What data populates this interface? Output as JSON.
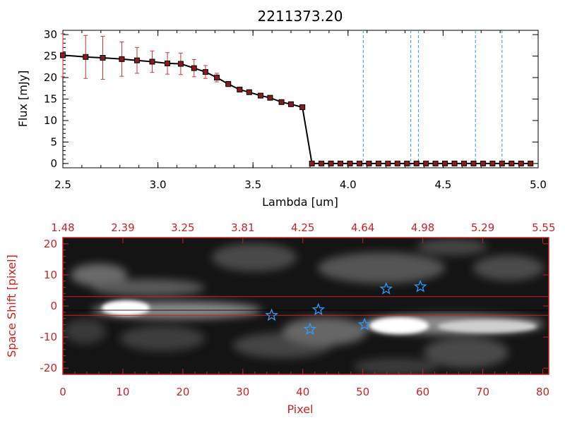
{
  "title": "2211373.20",
  "colors": {
    "axis_black": "#000000",
    "accent_red": "#cc2222",
    "marker_fill": "#8b1a1a",
    "errorbar_red": "#e03030",
    "line_blue": "#3399dd",
    "star_blue": "#3399ff"
  },
  "chart_data": [
    {
      "type": "line",
      "title": "2211373.20",
      "xlabel": "Lambda [um]",
      "ylabel": "Flux [mJy]",
      "xlim": [
        2.5,
        5.0
      ],
      "ylim": [
        -1,
        31
      ],
      "xticks": [
        "2.5",
        "3.0",
        "3.5",
        "4.0",
        "4.5",
        "5.0"
      ],
      "yticks": [
        "0",
        "5",
        "10",
        "15",
        "20",
        "25",
        "30"
      ],
      "series": [
        {
          "x": [
            2.5,
            2.62,
            2.71,
            2.81,
            2.89,
            2.97,
            3.05,
            3.12,
            3.19,
            3.25,
            3.31,
            3.37,
            3.43,
            3.48,
            3.54,
            3.59,
            3.65,
            3.7,
            3.76,
            3.81,
            3.86,
            3.91,
            3.96,
            4.01,
            4.06,
            4.11,
            4.16,
            4.21,
            4.26,
            4.31,
            4.36,
            4.41,
            4.46,
            4.51,
            4.56,
            4.61,
            4.66,
            4.71,
            4.76,
            4.81,
            4.86,
            4.91,
            4.96
          ],
          "y": [
            25.2,
            24.8,
            24.6,
            24.3,
            24.0,
            23.7,
            23.3,
            23.2,
            22.2,
            21.3,
            20.0,
            18.5,
            17.2,
            16.6,
            15.8,
            15.3,
            14.3,
            13.8,
            13.1,
            0,
            0,
            0,
            0,
            0,
            0,
            0,
            0,
            0,
            0,
            0,
            0,
            0,
            0,
            0,
            0,
            0,
            0,
            0,
            0,
            0,
            0,
            0,
            0
          ],
          "yerr": [
            5.0,
            5.0,
            5.0,
            4.0,
            3.0,
            2.5,
            2.5,
            2.5,
            2.0,
            1.5,
            1.0,
            0.6,
            0.5,
            0.4,
            0.4,
            0.4,
            0.3,
            0.3,
            0.3,
            0,
            0,
            0,
            0,
            0,
            0,
            0,
            0,
            0,
            0,
            0,
            0,
            0,
            0,
            0,
            0,
            0,
            0,
            0,
            0,
            0,
            0,
            0,
            0
          ]
        }
      ],
      "vlines": [
        4.08,
        4.33,
        4.37,
        4.67,
        4.81
      ],
      "hline": 0
    },
    {
      "type": "heatmap",
      "xlabel": "Pixel",
      "ylabel": "Space Shift [pixel]",
      "xlim": [
        0,
        81
      ],
      "ylim": [
        -22,
        22
      ],
      "xticks": [
        "0",
        "10",
        "20",
        "30",
        "40",
        "50",
        "60",
        "70",
        "80"
      ],
      "yticks": [
        "-20",
        "-10",
        "0",
        "10",
        "20"
      ],
      "top_axis_ticks": [
        "1.48",
        "2.39",
        "3.25",
        "3.81",
        "4.25",
        "4.64",
        "4.98",
        "5.29",
        "5.55"
      ],
      "hlines": [
        3,
        -3
      ],
      "stars": [
        {
          "x": 34.8,
          "y": -3.0
        },
        {
          "x": 42.6,
          "y": -1.2
        },
        {
          "x": 41.2,
          "y": -7.5
        },
        {
          "x": 50.3,
          "y": -6.0
        },
        {
          "x": 53.9,
          "y": 5.5
        },
        {
          "x": 59.6,
          "y": 6.2
        }
      ]
    }
  ]
}
